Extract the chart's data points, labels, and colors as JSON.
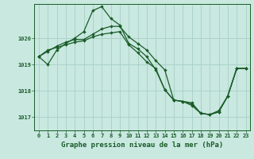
{
  "bg_color": "#c8e8e0",
  "grid_color": "#a8d0c8",
  "line_color": "#1a5c28",
  "title": "Graphe pression niveau de la mer (hPa)",
  "xlabel_hours": [
    0,
    1,
    2,
    3,
    4,
    5,
    6,
    7,
    8,
    9,
    10,
    11,
    12,
    13,
    14,
    15,
    16,
    17,
    18,
    19,
    20,
    21,
    22,
    23
  ],
  "ylim": [
    1016.5,
    1021.3
  ],
  "yticks": [
    1017,
    1018,
    1019,
    1020
  ],
  "line1": [
    1019.3,
    1019.55,
    1019.65,
    1019.75,
    1019.85,
    1019.9,
    1020.05,
    1020.15,
    1020.2,
    1020.25,
    1019.75,
    1019.45,
    1019.1,
    1018.85,
    1018.05,
    1017.65,
    1017.6,
    1017.55,
    1017.15,
    1017.1,
    1017.2,
    1017.8,
    1018.85,
    1018.85
  ],
  "line2": [
    1019.3,
    1019.0,
    1019.55,
    1019.8,
    1020.0,
    1020.25,
    1021.05,
    1021.2,
    1020.75,
    1020.5,
    1019.8,
    1019.6,
    1019.3,
    1018.8,
    1018.05,
    1017.65,
    1017.6,
    1017.45,
    1017.15,
    1017.1,
    1017.2,
    1017.8,
    1018.85,
    1018.85
  ],
  "line3": [
    1019.3,
    1019.5,
    1019.7,
    1019.85,
    1019.95,
    1019.95,
    1020.15,
    1020.35,
    1020.45,
    1020.45,
    1020.05,
    1019.8,
    1019.55,
    1019.15,
    1018.8,
    1017.65,
    1017.6,
    1017.5,
    1017.15,
    1017.1,
    1017.25,
    1017.8,
    1018.85,
    1018.85
  ],
  "title_color": "#1a5c28",
  "title_fontsize": 6.5,
  "tick_fontsize": 5.0,
  "markersize": 2.2,
  "linewidth": 0.9
}
